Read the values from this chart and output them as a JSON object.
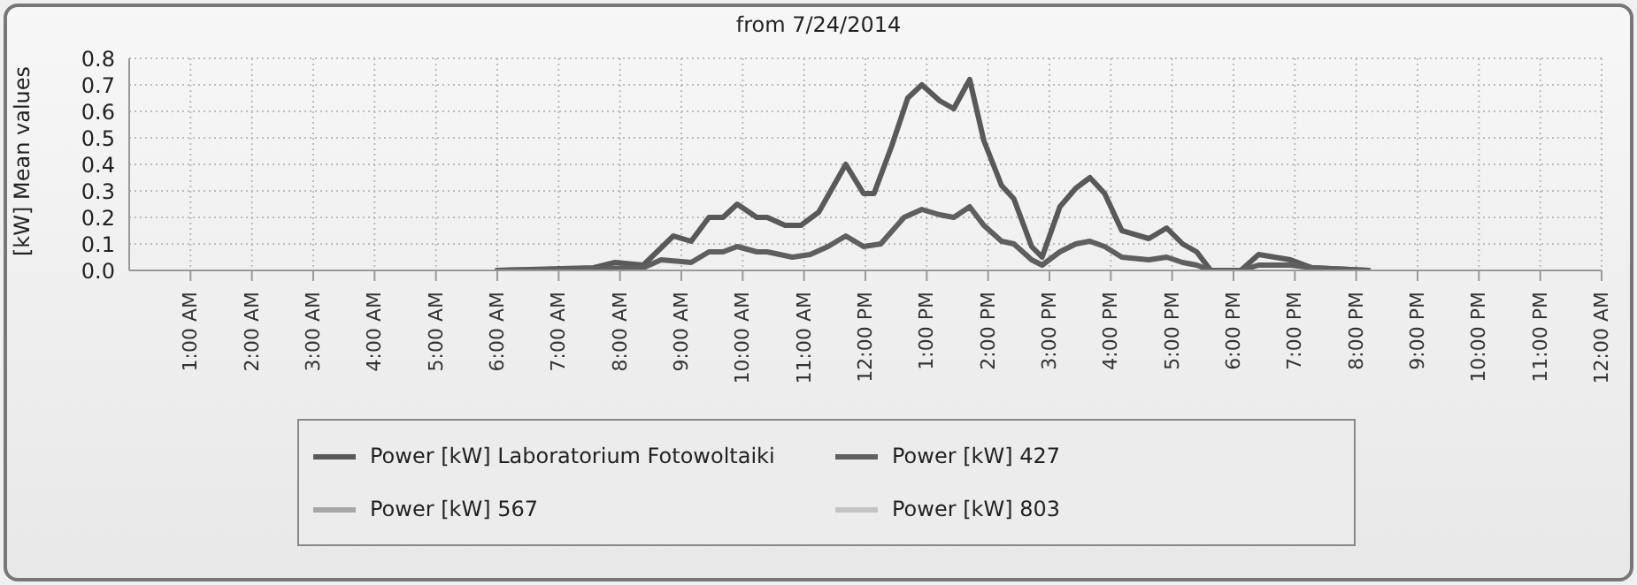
{
  "chart_data": {
    "type": "line",
    "title": "from 7/24/2014",
    "ylabel": "[kW] Mean values",
    "xlim": [
      0,
      24
    ],
    "xticks": [
      {
        "value": 1,
        "label": "1:00 AM"
      },
      {
        "value": 2,
        "label": "2:00 AM"
      },
      {
        "value": 3,
        "label": "3:00 AM"
      },
      {
        "value": 4,
        "label": "4:00 AM"
      },
      {
        "value": 5,
        "label": "5:00 AM"
      },
      {
        "value": 6,
        "label": "6:00 AM"
      },
      {
        "value": 7,
        "label": "7:00 AM"
      },
      {
        "value": 8,
        "label": "8:00 AM"
      },
      {
        "value": 9,
        "label": "9:00 AM"
      },
      {
        "value": 10,
        "label": "10:00 AM"
      },
      {
        "value": 11,
        "label": "11:00 AM"
      },
      {
        "value": 12,
        "label": "12:00 PM"
      },
      {
        "value": 13,
        "label": "1:00 PM"
      },
      {
        "value": 14,
        "label": "2:00 PM"
      },
      {
        "value": 15,
        "label": "3:00 PM"
      },
      {
        "value": 16,
        "label": "4:00 PM"
      },
      {
        "value": 17,
        "label": "5:00 PM"
      },
      {
        "value": 18,
        "label": "6:00 PM"
      },
      {
        "value": 19,
        "label": "7:00 PM"
      },
      {
        "value": 20,
        "label": "8:00 PM"
      },
      {
        "value": 21,
        "label": "9:00 PM"
      },
      {
        "value": 22,
        "label": "10:00 PM"
      },
      {
        "value": 23,
        "label": "11:00 PM"
      },
      {
        "value": 24,
        "label": "12:00 AM"
      }
    ],
    "ylim": [
      0,
      0.8
    ],
    "yticks": [
      {
        "value": 0,
        "label": "0.0"
      },
      0.1,
      0.2,
      0.3,
      0.4,
      0.5,
      0.6,
      0.7,
      0.8
    ],
    "grid": true,
    "legend": "bottom",
    "marker": "none",
    "line_style": "solid",
    "series": [
      {
        "name": "Power [kW] Laboratorium Fotowoltaiki",
        "color": "#595959",
        "x": [
          6,
          7.57,
          7.92,
          8.38,
          8.87,
          9.16,
          9.45,
          9.68,
          9.91,
          10.23,
          10.4,
          10.69,
          10.95,
          11.24,
          11.68,
          11.97,
          12.14,
          12.43,
          12.69,
          12.92,
          13.21,
          13.44,
          13.7,
          13.93,
          14.22,
          14.42,
          14.71,
          14.88,
          15.17,
          15.43,
          15.66,
          15.9,
          16.18,
          16.62,
          16.91,
          17.17,
          17.4,
          17.63,
          18.12,
          18.41,
          18.93,
          19.28,
          20.2
        ],
        "values": [
          0,
          0.01,
          0.03,
          0.02,
          0.13,
          0.11,
          0.2,
          0.2,
          0.25,
          0.2,
          0.2,
          0.17,
          0.17,
          0.22,
          0.4,
          0.29,
          0.29,
          0.47,
          0.65,
          0.7,
          0.64,
          0.61,
          0.72,
          0.49,
          0.32,
          0.27,
          0.09,
          0.05,
          0.24,
          0.31,
          0.35,
          0.29,
          0.15,
          0.12,
          0.16,
          0.1,
          0.07,
          0,
          0,
          0.06,
          0.04,
          0.01,
          0
        ]
      },
      {
        "name": "Power [kW] 427",
        "color": "#5f5f5f",
        "x": [
          6,
          8.38,
          8.67,
          9.16,
          9.45,
          9.68,
          9.91,
          10.23,
          10.4,
          10.81,
          11.1,
          11.39,
          11.68,
          11.97,
          12.25,
          12.63,
          12.92,
          13.21,
          13.44,
          13.7,
          13.93,
          14.22,
          14.42,
          14.71,
          14.88,
          15.17,
          15.43,
          15.66,
          15.9,
          16.18,
          16.62,
          16.91,
          17.17,
          17.4,
          17.63,
          18.12,
          18.41,
          18.93,
          19.28,
          20.2
        ],
        "values": [
          0,
          0.01,
          0.04,
          0.03,
          0.07,
          0.07,
          0.09,
          0.07,
          0.07,
          0.05,
          0.06,
          0.09,
          0.13,
          0.09,
          0.1,
          0.2,
          0.23,
          0.21,
          0.2,
          0.24,
          0.17,
          0.11,
          0.1,
          0.04,
          0.02,
          0.07,
          0.1,
          0.11,
          0.09,
          0.05,
          0.04,
          0.05,
          0.03,
          0.02,
          0,
          0,
          0.02,
          0.02,
          0.01,
          0
        ]
      },
      {
        "name": "Power [kW] 567",
        "color": "#a6a6a6"
      },
      {
        "name": "Power [kW] 803",
        "color": "#c4c4c4"
      }
    ]
  }
}
